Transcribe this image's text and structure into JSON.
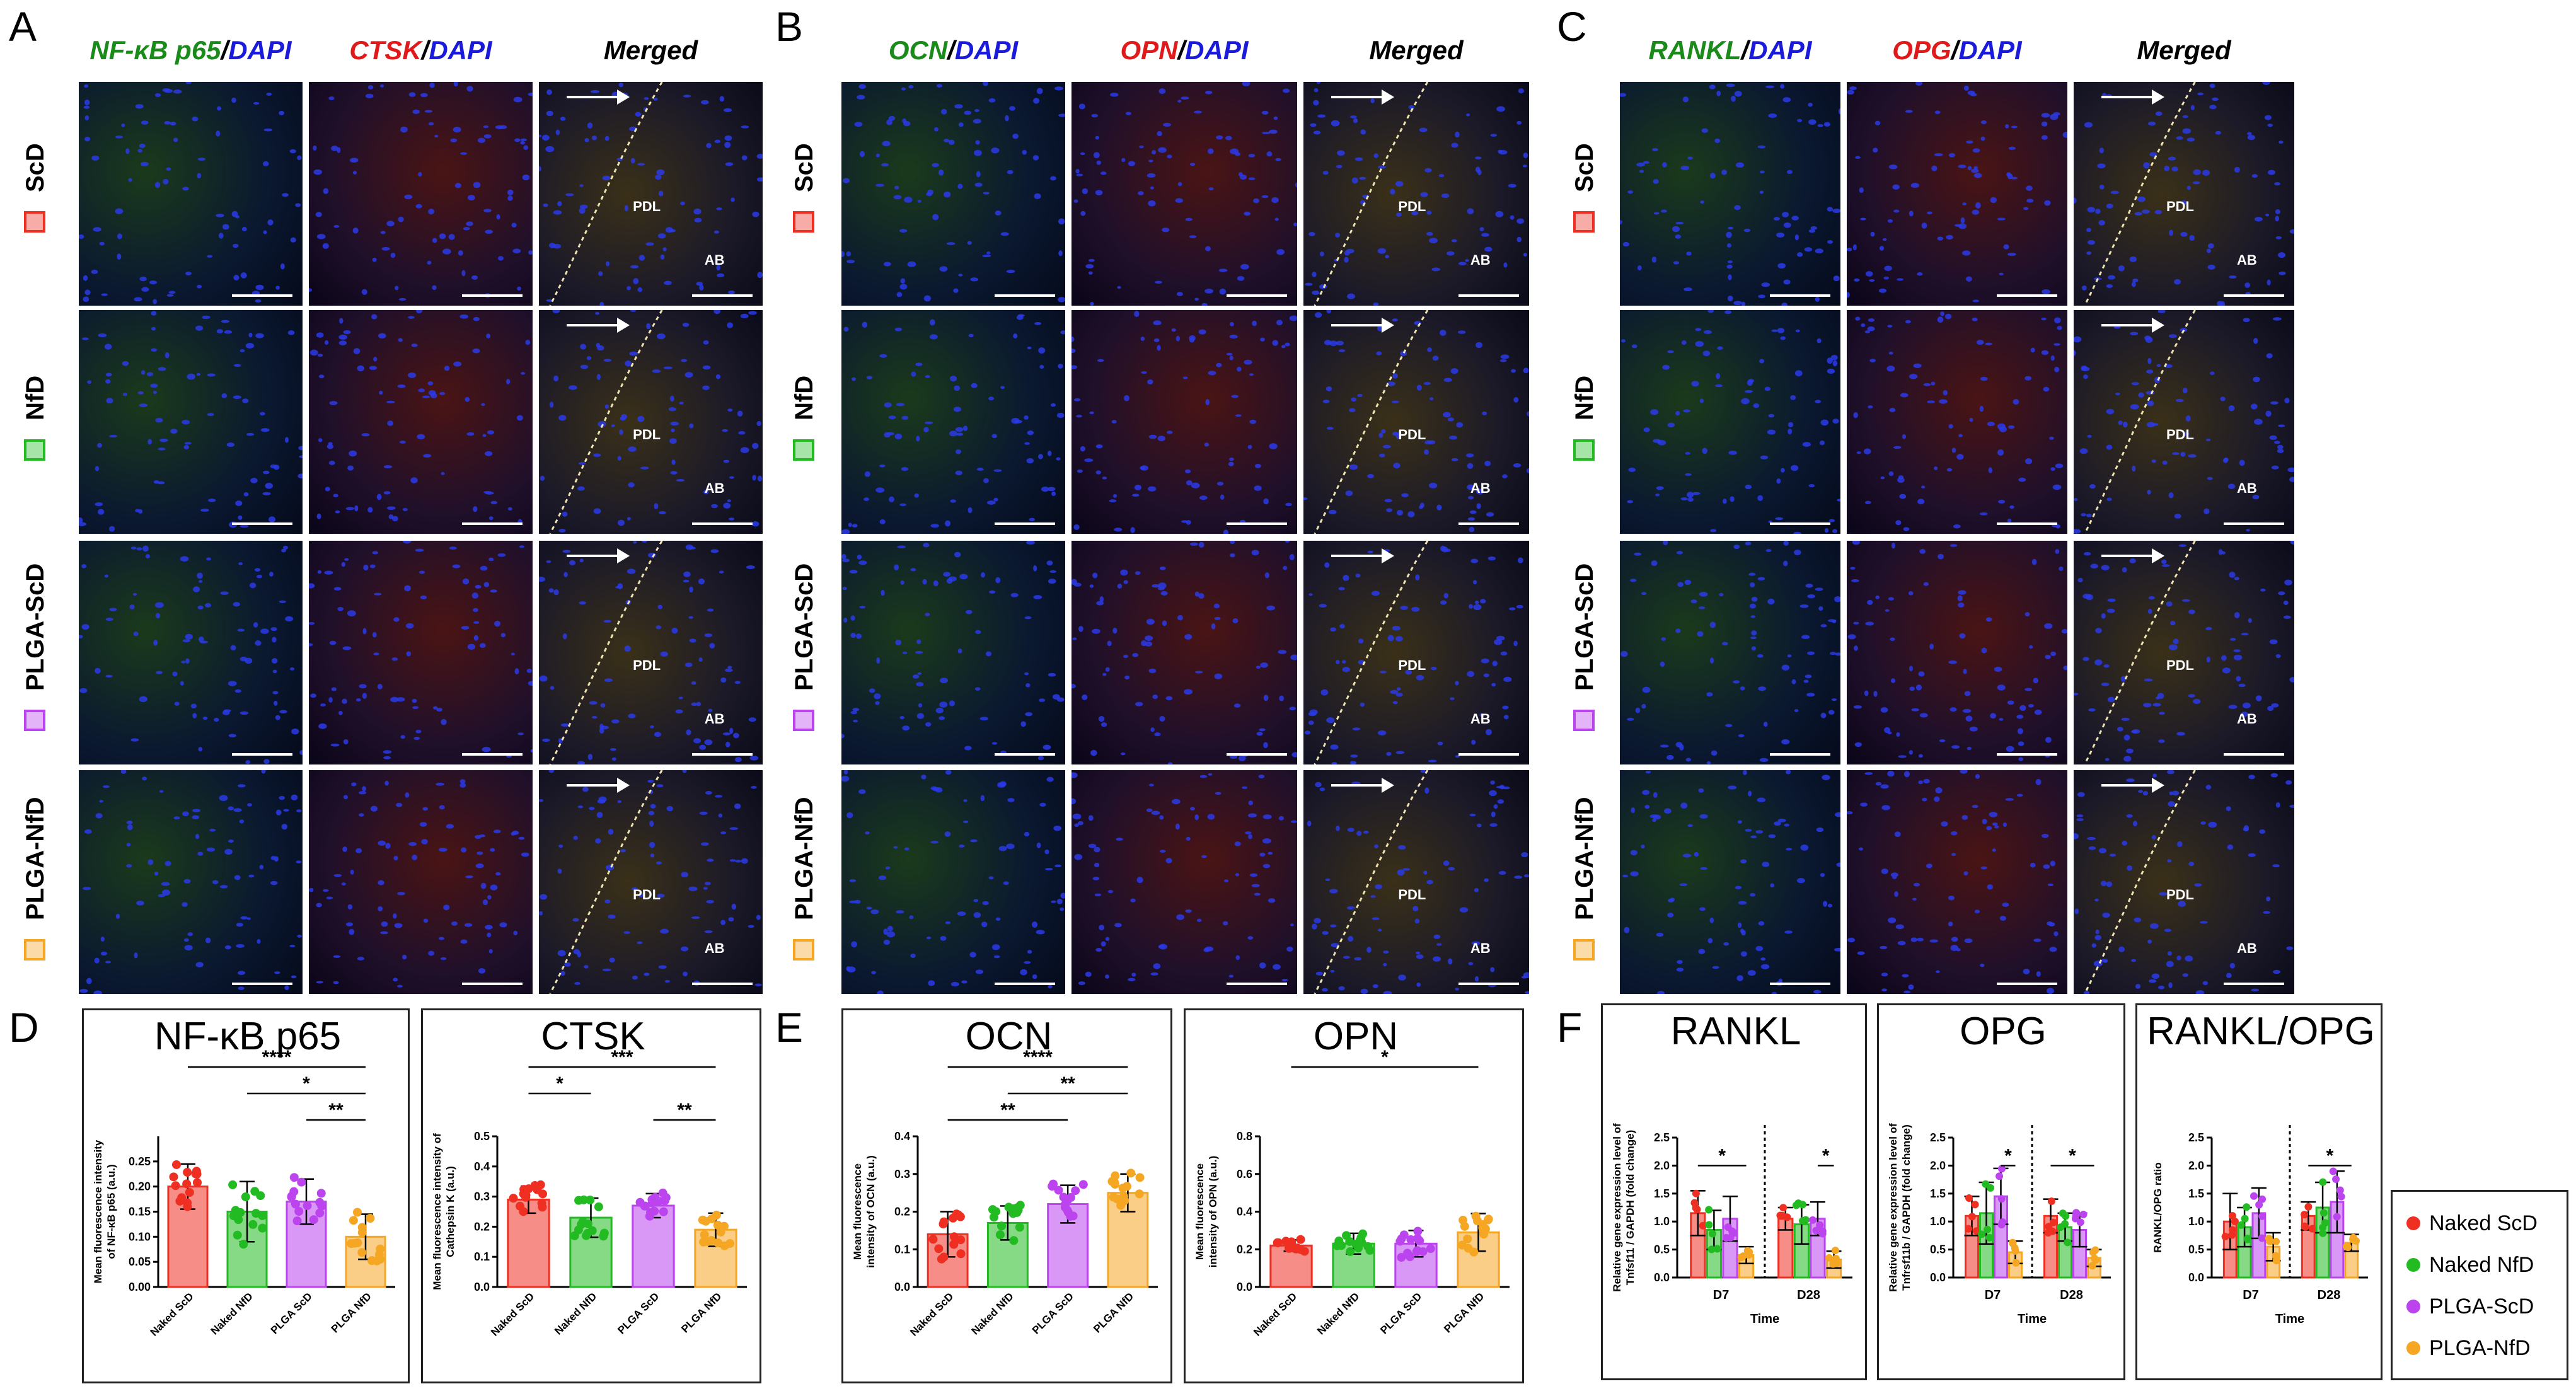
{
  "panels": {
    "A": {
      "letter": "A",
      "headers": [
        {
          "parts": [
            {
              "t": "NF-κB p65",
              "c": "#1a8a1a"
            },
            {
              "t": "/",
              "c": "#000"
            },
            {
              "t": "DAPI",
              "c": "#1a1adb"
            }
          ]
        },
        {
          "parts": [
            {
              "t": "CTSK",
              "c": "#e01a1a"
            },
            {
              "t": "/",
              "c": "#000"
            },
            {
              "t": "DAPI",
              "c": "#1a1adb"
            }
          ]
        },
        {
          "parts": [
            {
              "t": "Merged",
              "c": "#000"
            }
          ]
        }
      ],
      "rows": [
        "ScD",
        "NfD",
        "PLGA-ScD",
        "PLGA-NfD"
      ]
    },
    "B": {
      "letter": "B",
      "headers": [
        {
          "parts": [
            {
              "t": "OCN",
              "c": "#1a8a1a"
            },
            {
              "t": "/",
              "c": "#000"
            },
            {
              "t": "DAPI",
              "c": "#1a1adb"
            }
          ]
        },
        {
          "parts": [
            {
              "t": "OPN",
              "c": "#e01a1a"
            },
            {
              "t": "/",
              "c": "#000"
            },
            {
              "t": "DAPI",
              "c": "#1a1adb"
            }
          ]
        },
        {
          "parts": [
            {
              "t": "Merged",
              "c": "#000"
            }
          ]
        }
      ],
      "rows": [
        "ScD",
        "NfD",
        "PLGA-ScD",
        "PLGA-NfD"
      ]
    },
    "C": {
      "letter": "C",
      "headers": [
        {
          "parts": [
            {
              "t": "RANKL",
              "c": "#1a8a1a"
            },
            {
              "t": "/",
              "c": "#000"
            },
            {
              "t": "DAPI",
              "c": "#1a1adb"
            }
          ]
        },
        {
          "parts": [
            {
              "t": "OPG",
              "c": "#e01a1a"
            },
            {
              "t": "/",
              "c": "#000"
            },
            {
              "t": "DAPI",
              "c": "#1a1adb"
            }
          ]
        },
        {
          "parts": [
            {
              "t": "Merged",
              "c": "#000"
            }
          ]
        }
      ],
      "rows": [
        "ScD",
        "NfD",
        "PLGA-ScD",
        "PLGA-NfD"
      ]
    },
    "D": {
      "letter": "D"
    },
    "E": {
      "letter": "E"
    },
    "F": {
      "letter": "F"
    }
  },
  "group_colors": [
    "#ee2f22",
    "#22bb22",
    "#bb44ee",
    "#f5a623"
  ],
  "micrograph_labels": {
    "pdl": "PDL",
    "ab": "AB"
  },
  "legend": [
    "Naked ScD",
    "Naked NfD",
    "PLGA-ScD",
    "PLGA-NfD"
  ],
  "chart_data": [
    {
      "type": "bar",
      "title": "NF-κB p65",
      "ylabel": "Mean fluorescence intensity of NF-κB p65 (a.u.)",
      "categories": [
        "Naked ScD",
        "Naked NfD",
        "PLGA ScD",
        "PLGA NfD"
      ],
      "values": [
        0.2,
        0.15,
        0.17,
        0.1
      ],
      "errors": [
        0.045,
        0.06,
        0.045,
        0.045
      ],
      "ylim": [
        0,
        0.3
      ],
      "yticks": [
        "0.00",
        "0.05",
        "0.10",
        "0.15",
        "0.20",
        "0.25"
      ],
      "significance": [
        {
          "from": 0,
          "to": 3,
          "label": "****"
        },
        {
          "from": 1,
          "to": 3,
          "label": "*"
        },
        {
          "from": 2,
          "to": 3,
          "label": "**"
        }
      ]
    },
    {
      "type": "bar",
      "title": "CTSK",
      "ylabel": "Mean fluorescence intensity of Cathepsin K (a.u.)",
      "categories": [
        "Naked ScD",
        "Naked NfD",
        "PLGA ScD",
        "PLGA NfD"
      ],
      "values": [
        0.29,
        0.23,
        0.27,
        0.19
      ],
      "errors": [
        0.045,
        0.065,
        0.04,
        0.055
      ],
      "ylim": [
        0,
        0.5
      ],
      "yticks": [
        "0.0",
        "0.1",
        "0.2",
        "0.3",
        "0.4",
        "0.5"
      ],
      "significance": [
        {
          "from": 0,
          "to": 3,
          "label": "***"
        },
        {
          "from": 0,
          "to": 1,
          "label": "*"
        },
        {
          "from": 2,
          "to": 3,
          "label": "**"
        }
      ]
    },
    {
      "type": "bar",
      "title": "OCN",
      "ylabel": "Mean fluorescence intensity of OCN (a.u.)",
      "categories": [
        "Naked ScD",
        "Naked NfD",
        "PLGA ScD",
        "PLGA NfD"
      ],
      "values": [
        0.14,
        0.17,
        0.22,
        0.25
      ],
      "errors": [
        0.06,
        0.045,
        0.05,
        0.05
      ],
      "ylim": [
        0,
        0.4
      ],
      "yticks": [
        "0.0",
        "0.1",
        "0.2",
        "0.3",
        "0.4"
      ],
      "significance": [
        {
          "from": 0,
          "to": 3,
          "label": "****"
        },
        {
          "from": 1,
          "to": 3,
          "label": "**"
        },
        {
          "from": 0,
          "to": 2,
          "label": "**"
        }
      ]
    },
    {
      "type": "bar",
      "title": "OPN",
      "ylabel": "Mean fluorescence intensity of OPN (a.u.)",
      "categories": [
        "Naked ScD",
        "Naked NfD",
        "PLGA ScD",
        "PLGA NfD"
      ],
      "values": [
        0.22,
        0.23,
        0.23,
        0.29
      ],
      "errors": [
        0.03,
        0.055,
        0.07,
        0.1
      ],
      "ylim": [
        0,
        0.8
      ],
      "yticks": [
        "0.0",
        "0.2",
        "0.4",
        "0.6",
        "0.8"
      ],
      "significance": [
        {
          "from": 0,
          "to": 3,
          "label": "*"
        }
      ]
    },
    {
      "type": "bar",
      "title": "RANKL",
      "ylabel": "Relative gene expression level of Tnfsf11 / GAPDH (fold change)",
      "xlabel": "Time",
      "groups": [
        "D7",
        "D28"
      ],
      "series": [
        {
          "name": "Naked ScD",
          "values": [
            1.15,
            1.05
          ],
          "errors": [
            0.4,
            0.2
          ]
        },
        {
          "name": "Naked NfD",
          "values": [
            0.85,
            0.95
          ],
          "errors": [
            0.35,
            0.35
          ]
        },
        {
          "name": "PLGA-ScD",
          "values": [
            1.05,
            1.05
          ],
          "errors": [
            0.4,
            0.3
          ]
        },
        {
          "name": "PLGA-NfD",
          "values": [
            0.4,
            0.32
          ],
          "errors": [
            0.15,
            0.15
          ]
        }
      ],
      "ylim": [
        0,
        2.5
      ],
      "yticks": [
        "0.0",
        "0.5",
        "1.0",
        "1.5",
        "2.0",
        "2.5"
      ],
      "significance": [
        {
          "group": 0,
          "from": 0,
          "to": 3,
          "label": "*"
        },
        {
          "group": 1,
          "from": 2,
          "to": 3,
          "label": "*"
        }
      ]
    },
    {
      "type": "bar",
      "title": "OPG",
      "ylabel": "Relative gene expression level of Tnfrsf11b / GAPDH (fold change)",
      "xlabel": "Time",
      "groups": [
        "D7",
        "D28"
      ],
      "series": [
        {
          "name": "Naked ScD",
          "values": [
            1.1,
            1.1
          ],
          "errors": [
            0.35,
            0.3
          ]
        },
        {
          "name": "Naked NfD",
          "values": [
            1.15,
            0.9
          ],
          "errors": [
            0.55,
            0.25
          ]
        },
        {
          "name": "PLGA-ScD",
          "values": [
            1.45,
            0.85
          ],
          "errors": [
            0.5,
            0.3
          ]
        },
        {
          "name": "PLGA-NfD",
          "values": [
            0.45,
            0.35
          ],
          "errors": [
            0.2,
            0.15
          ]
        }
      ],
      "ylim": [
        0,
        2.5
      ],
      "yticks": [
        "0.0",
        "0.5",
        "1.0",
        "1.5",
        "2.0",
        "2.5"
      ],
      "significance": [
        {
          "group": 0,
          "from": 2,
          "to": 3,
          "label": "*"
        },
        {
          "group": 1,
          "from": 0,
          "to": 3,
          "label": "*"
        }
      ]
    },
    {
      "type": "bar",
      "title": "RANKL/OPG",
      "ylabel": "RANKL/OPG ratio",
      "xlabel": "Time",
      "groups": [
        "D7",
        "D28"
      ],
      "series": [
        {
          "name": "Naked ScD",
          "values": [
            1.0,
            1.1
          ],
          "errors": [
            0.5,
            0.25
          ]
        },
        {
          "name": "Naked NfD",
          "values": [
            0.9,
            1.25
          ],
          "errors": [
            0.35,
            0.45
          ]
        },
        {
          "name": "PLGA-ScD",
          "values": [
            1.15,
            1.35
          ],
          "errors": [
            0.45,
            0.55
          ]
        },
        {
          "name": "PLGA-NfD",
          "values": [
            0.55,
            0.62
          ],
          "errors": [
            0.25,
            0.15
          ]
        }
      ],
      "ylim": [
        0,
        2.5
      ],
      "yticks": [
        "0.0",
        "0.5",
        "1.0",
        "1.5",
        "2.0",
        "2.5"
      ],
      "significance": [
        {
          "group": 1,
          "from": 0,
          "to": 3,
          "label": "*"
        }
      ]
    }
  ]
}
